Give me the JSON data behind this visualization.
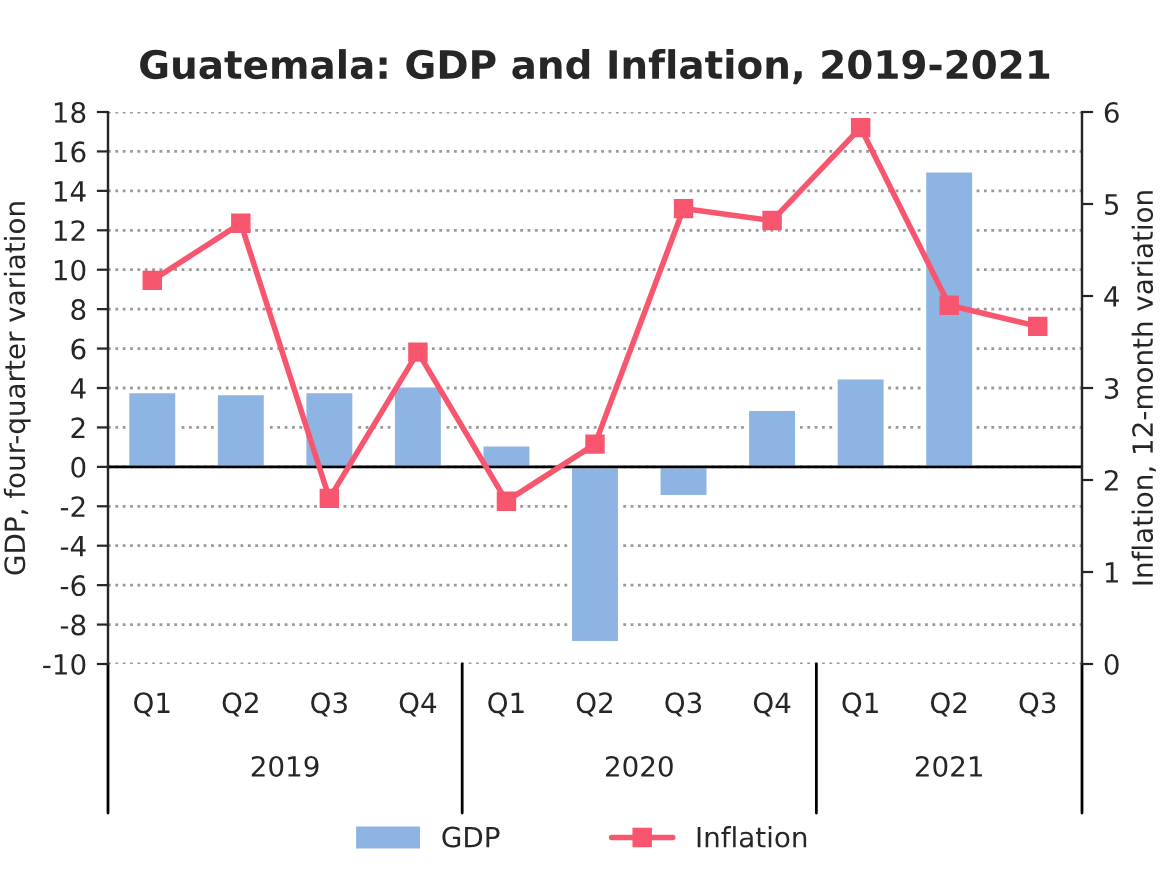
{
  "chart_data": {
    "type": "bar",
    "title": "Guatemala: GDP and Inflation, 2019-2021",
    "categories": [
      "Q1",
      "Q2",
      "Q3",
      "Q4",
      "Q1",
      "Q2",
      "Q3",
      "Q4",
      "Q1",
      "Q2",
      "Q3"
    ],
    "series": [
      {
        "name": "GDP",
        "color": "#8eb4e3",
        "values": [
          3.8,
          3.7,
          3.8,
          4.1,
          1.1,
          -8.9,
          -1.5,
          2.9,
          4.5,
          15.0,
          null
        ]
      },
      {
        "name": "Inflation",
        "type": "line",
        "axis": "y2",
        "color": "#f7566e",
        "marker": "square",
        "values": [
          4.17,
          4.79,
          1.8,
          3.39,
          1.77,
          2.39,
          4.95,
          4.82,
          5.83,
          3.9,
          3.67
        ]
      }
    ],
    "ylabel": "GDP, four-quarter variation",
    "y2label": "Inflation, 12-month variation",
    "ylim": [
      -10,
      18
    ],
    "yticks": [
      -10,
      -8,
      -6,
      -4,
      -2,
      0,
      2,
      4,
      6,
      8,
      10,
      12,
      14,
      16,
      18
    ],
    "y2lim": [
      0,
      6
    ],
    "y2ticks": [
      0,
      1,
      2,
      3,
      4,
      5,
      6
    ],
    "annotations": [
      "2019",
      "2020",
      "2021"
    ],
    "grid": "y",
    "legend": "bottom"
  }
}
